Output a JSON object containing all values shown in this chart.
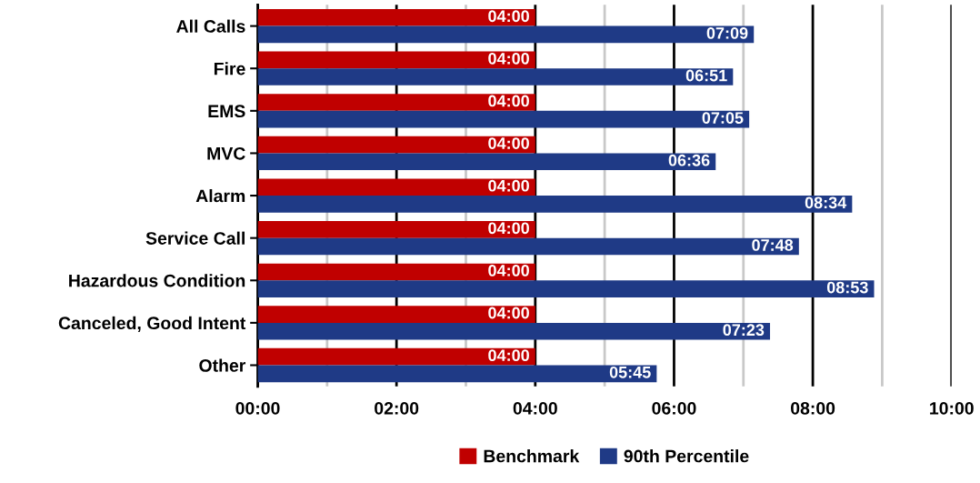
{
  "chart_data": {
    "type": "bar",
    "orientation": "horizontal",
    "categories": [
      "All Calls",
      "Fire",
      "EMS",
      "MVC",
      "Alarm",
      "Service Call",
      "Hazardous Condition",
      "Canceled, Good Intent",
      "Other"
    ],
    "series": [
      {
        "name": "Benchmark",
        "color": "#c00000",
        "values": [
          4,
          4,
          4,
          4,
          4,
          4,
          4,
          4,
          4
        ],
        "value_labels": [
          "04:00",
          "04:00",
          "04:00",
          "04:00",
          "04:00",
          "04:00",
          "04:00",
          "04:00",
          "04:00"
        ]
      },
      {
        "name": "90th Percentile",
        "color": "#1f3a86",
        "values": [
          7.15,
          6.85,
          7.0833,
          6.6,
          8.5667,
          7.8,
          8.8833,
          7.3833,
          5.75
        ],
        "value_labels": [
          "07:09",
          "06:51",
          "07:05",
          "06:36",
          "08:34",
          "07:48",
          "08:53",
          "07:23",
          "05:45"
        ]
      }
    ],
    "xlim": [
      0,
      10
    ],
    "xticks": [
      {
        "value": 0,
        "label": "00:00"
      },
      {
        "value": 1,
        "label": null
      },
      {
        "value": 2,
        "label": "02:00"
      },
      {
        "value": 3,
        "label": null
      },
      {
        "value": 4,
        "label": "04:00"
      },
      {
        "value": 5,
        "label": null
      },
      {
        "value": 6,
        "label": "06:00"
      },
      {
        "value": 7,
        "label": null
      },
      {
        "value": 8,
        "label": "08:00"
      },
      {
        "value": 9,
        "label": null
      },
      {
        "value": 10,
        "label": "10:00"
      }
    ],
    "grid": "x",
    "legend": "bottom"
  }
}
